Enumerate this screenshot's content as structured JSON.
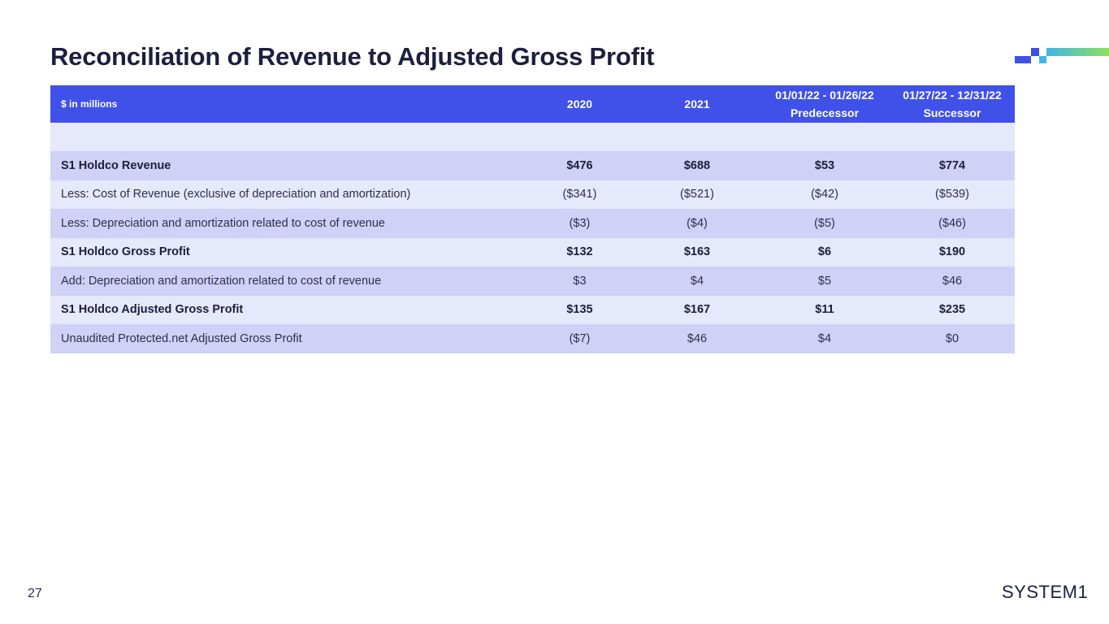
{
  "title": "Reconciliation of Revenue to Adjusted Gross Profit",
  "colors": {
    "header_bg": "#3f51e8",
    "row_light": "#e6e8fb",
    "row_mid": "#cfd2f6",
    "accent_blue": "#3f51e8",
    "accent_cyan": "#3fb6e8",
    "accent_green": "#8fe05a"
  },
  "table": {
    "headers": [
      {
        "line1": "$ in millions",
        "line2": ""
      },
      {
        "line1": "2020",
        "line2": ""
      },
      {
        "line1": "2021",
        "line2": ""
      },
      {
        "line1": "01/01/22 - 01/26/22",
        "line2": "Predecessor"
      },
      {
        "line1": "01/27/22 - 12/31/22",
        "line2": "Successor"
      }
    ],
    "rows": [
      {
        "label": "S1 Holdco Revenue",
        "values": [
          "$476",
          "$688",
          "$53",
          "$774"
        ],
        "bold": true
      },
      {
        "label": "Less: Cost of Revenue (exclusive of depreciation and amortization)",
        "values": [
          "($341)",
          "($521)",
          "($42)",
          "($539)"
        ],
        "bold": false
      },
      {
        "label": "Less: Depreciation and amortization related to cost of revenue",
        "values": [
          "($3)",
          "($4)",
          "($5)",
          "($46)"
        ],
        "bold": false
      },
      {
        "label": "S1 Holdco Gross Profit",
        "values": [
          "$132",
          "$163",
          "$6",
          "$190"
        ],
        "bold": true
      },
      {
        "label": "Add: Depreciation and amortization related to cost of revenue",
        "values": [
          "$3",
          "$4",
          "$5",
          "$46"
        ],
        "bold": false
      },
      {
        "label": "S1 Holdco Adjusted Gross Profit",
        "values": [
          "$135",
          "$167",
          "$11",
          "$235"
        ],
        "bold": true
      },
      {
        "label": "Unaudited Protected.net Adjusted Gross Profit",
        "values": [
          "($7)",
          "$46",
          "$4",
          "$0"
        ],
        "bold": false
      }
    ]
  },
  "footer": {
    "page_number": "27",
    "logo_text": "SYSTEM1"
  }
}
